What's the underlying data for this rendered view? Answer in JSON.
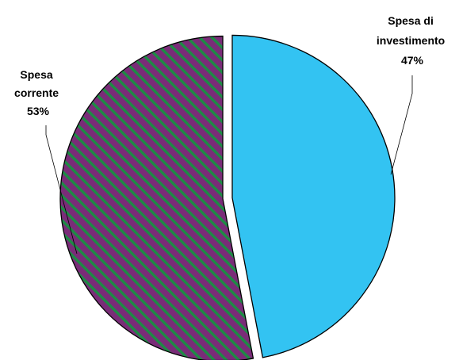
{
  "chart_data": {
    "type": "pie",
    "slices": [
      {
        "label_lines": [
          "Spesa di",
          "investimento",
          "47%"
        ],
        "category": "Spesa di investimento",
        "value": 47,
        "color": "#33C3F2",
        "fill": "solid"
      },
      {
        "label_lines": [
          "Spesa",
          "corrente",
          "53%"
        ],
        "category": "Spesa corrente",
        "value": 53,
        "color": "#7A2C78",
        "stripe_color": "#1E8A45",
        "fill": "diagonal-stripes"
      }
    ],
    "legend": "none",
    "exploded": true
  }
}
